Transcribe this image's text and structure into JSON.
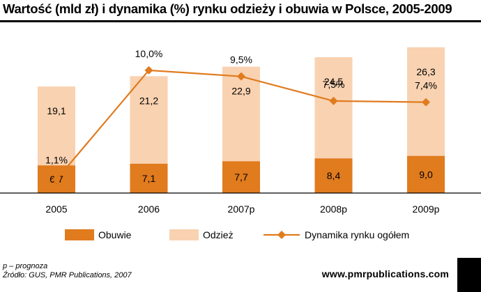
{
  "title": "Wartość (mld zł) i dynamika (%) rynku odzieży i obuwia w Polsce, 2005-2009",
  "footnote_prognosis": "p – prognoza",
  "footnote_source": "Źródło: GUS, PMR Publications, 2007",
  "website": "www.pmrpublications.com",
  "colors": {
    "obuwie": "#e07b1e",
    "odziez": "#f9d2b1",
    "dynamika": "#e07b1e",
    "axis": "#000000",
    "title_rule": "#000000"
  },
  "chart_data": {
    "type": "bar",
    "stacked": true,
    "categories": [
      "2005",
      "2006",
      "2007p",
      "2008p",
      "2009p"
    ],
    "series": [
      {
        "name": "Obuwie",
        "kind": "bar",
        "values": [
          6.7,
          7.1,
          7.7,
          8.4,
          9.0
        ],
        "labels": [
          "6,7",
          "7,1",
          "7,7",
          "8,4",
          "9,0"
        ]
      },
      {
        "name": "Odzież",
        "kind": "bar",
        "values": [
          19.1,
          21.2,
          22.9,
          24.5,
          26.3
        ],
        "labels": [
          "19,1",
          "21,2",
          "22,9",
          "24,5",
          "26,3"
        ]
      },
      {
        "name": "Dynamika rynku ogółem",
        "kind": "line",
        "values": [
          1.1,
          10.0,
          9.5,
          7.5,
          7.4
        ],
        "labels": [
          "1,1%",
          "10,0%",
          "9,5%",
          "7,5%",
          "7,4%"
        ]
      }
    ],
    "ylim_bars": [
      0,
      40
    ],
    "ylim_line": [
      0,
      13
    ],
    "grid": false,
    "legend_position": "bottom"
  }
}
